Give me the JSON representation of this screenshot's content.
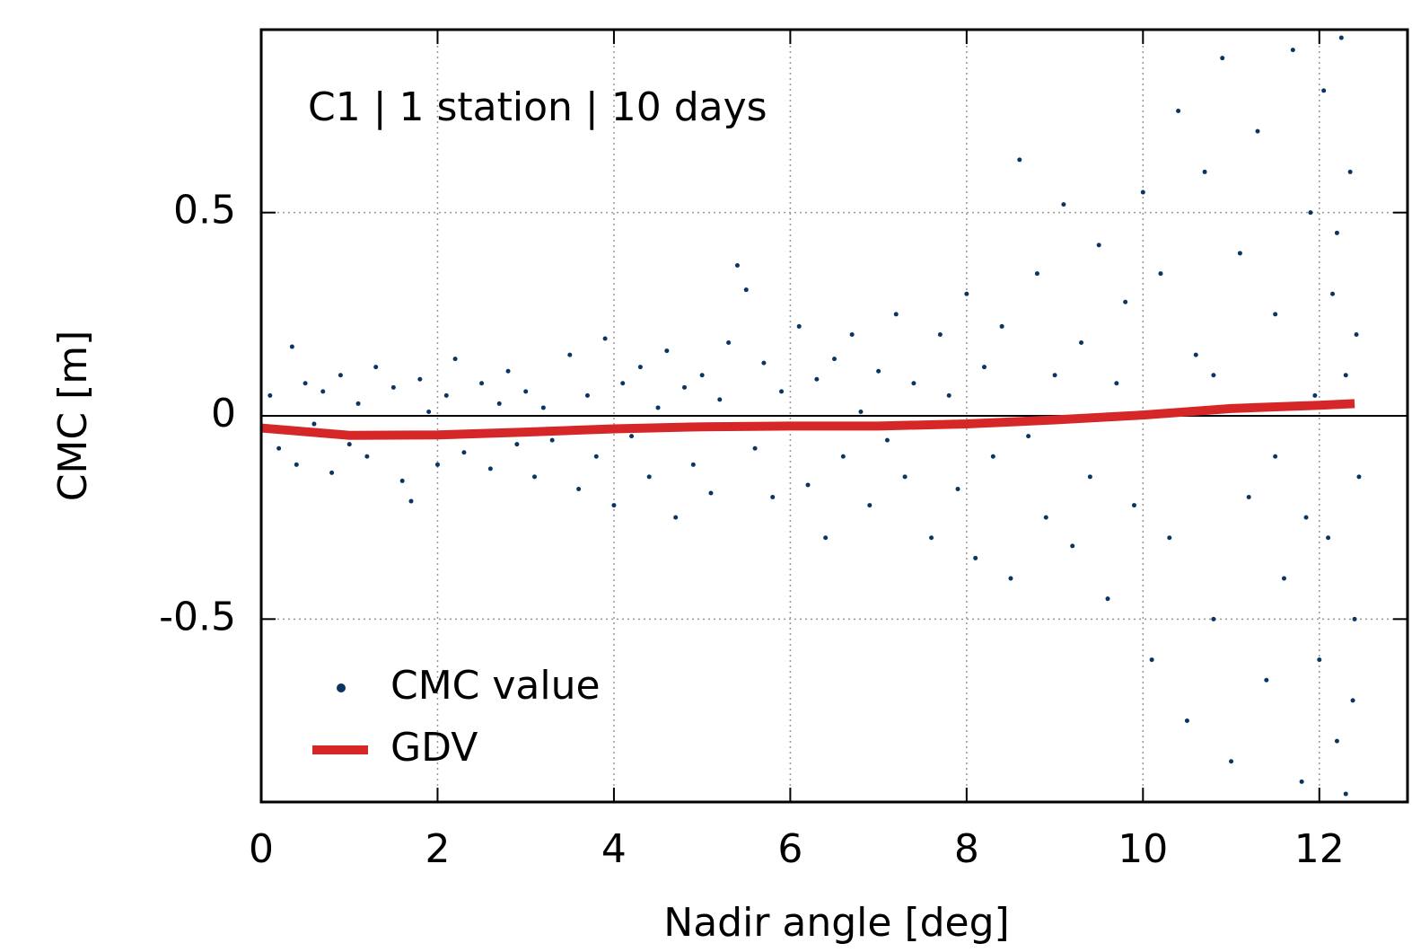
{
  "chart_data": {
    "type": "scatter",
    "annotation": "C1 | 1 station | 10 days",
    "x_label": "Nadir angle [deg]",
    "y_label": "CMC [m]",
    "xlim": [
      0,
      13
    ],
    "xticks": [
      0,
      2,
      4,
      6,
      8,
      10,
      12
    ],
    "ylim": [
      -0.95,
      0.95
    ],
    "yticks": [
      -0.5,
      0,
      0.5
    ],
    "grid": true,
    "legend": "lower left",
    "series": [
      {
        "name": "CMC value",
        "color": "#0b3561",
        "x": [
          0.1,
          0.2,
          0.35,
          0.4,
          0.5,
          0.6,
          0.7,
          0.8,
          0.9,
          1.0,
          1.1,
          1.2,
          1.3,
          1.4,
          1.5,
          1.6,
          1.7,
          1.8,
          1.9,
          2.0,
          2.1,
          2.2,
          2.3,
          2.5,
          2.6,
          2.7,
          2.8,
          2.9,
          3.0,
          3.1,
          3.2,
          3.3,
          3.5,
          3.6,
          3.7,
          3.8,
          3.9,
          4.0,
          4.1,
          4.2,
          4.3,
          4.4,
          4.5,
          4.6,
          4.7,
          4.8,
          4.9,
          5.0,
          5.1,
          5.2,
          5.3,
          5.4,
          5.5,
          5.6,
          5.7,
          5.8,
          5.9,
          6.0,
          6.1,
          6.2,
          6.3,
          6.4,
          6.5,
          6.6,
          6.7,
          6.8,
          6.9,
          7.0,
          7.1,
          7.2,
          7.3,
          7.4,
          7.6,
          7.7,
          7.8,
          7.9,
          8.0,
          8.1,
          8.2,
          8.3,
          8.4,
          8.5,
          8.6,
          8.7,
          8.8,
          8.9,
          9.0,
          9.1,
          9.2,
          9.3,
          9.4,
          9.5,
          9.6,
          9.7,
          9.8,
          9.9,
          10.0,
          10.1,
          10.2,
          10.3,
          10.4,
          10.5,
          10.6,
          10.7,
          10.8,
          10.9,
          11.0,
          11.1,
          11.2,
          11.3,
          11.4,
          11.5,
          11.6,
          11.7,
          11.8,
          11.9,
          12.0,
          12.05,
          12.1,
          12.15,
          12.2,
          12.25,
          12.3,
          12.35,
          12.4,
          12.42,
          12.45,
          11.95,
          12.3,
          12.38,
          12.2,
          11.85,
          10.8,
          11.5
        ],
        "values": [
          0.05,
          -0.08,
          0.17,
          -0.12,
          0.08,
          -0.02,
          0.06,
          -0.14,
          0.1,
          -0.07,
          0.03,
          -0.1,
          0.12,
          -0.05,
          0.07,
          -0.16,
          -0.21,
          0.09,
          0.01,
          -0.12,
          0.05,
          0.14,
          -0.09,
          0.08,
          -0.13,
          0.03,
          0.11,
          -0.07,
          0.06,
          -0.15,
          0.02,
          -0.06,
          0.15,
          -0.18,
          0.05,
          -0.1,
          0.19,
          -0.22,
          0.08,
          -0.05,
          0.12,
          -0.15,
          0.02,
          0.16,
          -0.25,
          0.07,
          -0.12,
          0.1,
          -0.19,
          0.04,
          0.18,
          0.37,
          0.31,
          -0.08,
          0.13,
          -0.2,
          0.06,
          -0.03,
          0.22,
          -0.17,
          0.09,
          -0.3,
          0.14,
          -0.1,
          0.2,
          0.01,
          -0.22,
          0.11,
          -0.06,
          0.25,
          -0.15,
          0.08,
          -0.3,
          0.2,
          0.05,
          -0.18,
          0.3,
          -0.35,
          0.12,
          -0.1,
          0.22,
          -0.4,
          0.63,
          -0.05,
          0.35,
          -0.25,
          0.1,
          0.52,
          -0.32,
          0.18,
          -0.15,
          0.42,
          -0.45,
          0.08,
          0.28,
          -0.22,
          0.55,
          -0.6,
          0.35,
          -0.3,
          0.75,
          -0.75,
          0.15,
          0.6,
          -0.5,
          0.88,
          -0.85,
          0.4,
          -0.2,
          0.7,
          -0.65,
          0.25,
          -0.4,
          0.9,
          -0.9,
          0.5,
          -0.6,
          0.8,
          -0.3,
          0.3,
          -0.8,
          0.93,
          -0.93,
          0.6,
          -0.5,
          0.2,
          -0.15,
          0.05,
          0.1,
          -0.7,
          0.45,
          -0.25,
          0.1,
          -0.1
        ]
      },
      {
        "name": "GDV",
        "color": "#d62728",
        "x": [
          0,
          1,
          2,
          3,
          4,
          5,
          6,
          7,
          8,
          9,
          10,
          11,
          12,
          12.4
        ],
        "values": [
          -0.03,
          -0.048,
          -0.047,
          -0.04,
          -0.032,
          -0.027,
          -0.025,
          -0.025,
          -0.02,
          -0.01,
          0.002,
          0.018,
          0.026,
          0.03
        ]
      }
    ]
  }
}
